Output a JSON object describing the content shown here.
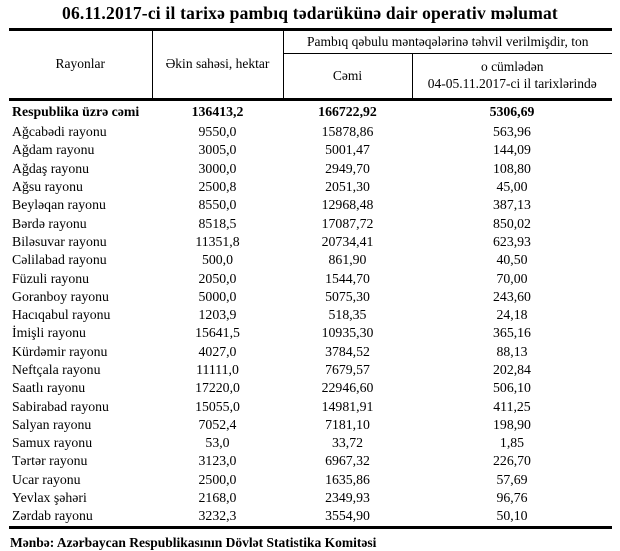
{
  "title": "06.11.2017-ci il tarixə pambıq tədarükünə dair operativ məlumat",
  "source": "Mənbə: Azərbaycan Respublikasının Dövlət Statistika Komitəsi",
  "table": {
    "headers": {
      "regions": "Rayonlar",
      "area": "Əkin sahəsi, hektar",
      "delivered_group": "Pambıq qəbulu məntəqələrinə təhvil verilmişdir, ton",
      "total": "Cəmi",
      "including_line1": "o cümlədən",
      "including_line2": "04-05.11.2017-ci il tarixlərində"
    },
    "summary_row": {
      "region": "Respublika üzrə cəmi",
      "area": "136413,2",
      "total": "166722,92",
      "recent": "5306,69"
    },
    "rows": [
      {
        "region": "Ağcabədi rayonu",
        "area": "9550,0",
        "total": "15878,86",
        "recent": "563,96"
      },
      {
        "region": "Ağdam rayonu",
        "area": "3005,0",
        "total": "5001,47",
        "recent": "144,09"
      },
      {
        "region": "Ağdaş rayonu",
        "area": "3000,0",
        "total": "2949,70",
        "recent": "108,80"
      },
      {
        "region": "Ağsu rayonu",
        "area": "2500,8",
        "total": "2051,30",
        "recent": "45,00"
      },
      {
        "region": "Beyləqan rayonu",
        "area": "8550,0",
        "total": "12968,48",
        "recent": "387,13"
      },
      {
        "region": "Bərdə rayonu",
        "area": "8518,5",
        "total": "17087,72",
        "recent": "850,02"
      },
      {
        "region": "Biləsuvar rayonu",
        "area": "11351,8",
        "total": "20734,41",
        "recent": "623,93"
      },
      {
        "region": "Cəlilabad rayonu",
        "area": "500,0",
        "total": "861,90",
        "recent": "40,50"
      },
      {
        "region": "Füzuli rayonu",
        "area": "2050,0",
        "total": "1544,70",
        "recent": "70,00"
      },
      {
        "region": "Goranboy rayonu",
        "area": "5000,0",
        "total": "5075,30",
        "recent": "243,60"
      },
      {
        "region": "Hacıqabul rayonu",
        "area": "1203,9",
        "total": "518,35",
        "recent": "24,18"
      },
      {
        "region": "İmişli rayonu",
        "area": "15641,5",
        "total": "10935,30",
        "recent": "365,16"
      },
      {
        "region": "Kürdəmir rayonu",
        "area": "4027,0",
        "total": "3784,52",
        "recent": "88,13"
      },
      {
        "region": "Neftçala rayonu",
        "area": "11111,0",
        "total": "7679,57",
        "recent": "202,84"
      },
      {
        "region": "Saatlı rayonu",
        "area": "17220,0",
        "total": "22946,60",
        "recent": "506,10"
      },
      {
        "region": "Sabirabad rayonu",
        "area": "15055,0",
        "total": "14981,91",
        "recent": "411,25"
      },
      {
        "region": "Salyan rayonu",
        "area": "7052,4",
        "total": "7181,10",
        "recent": "198,90"
      },
      {
        "region": "Samux rayonu",
        "area": "53,0",
        "total": "33,72",
        "recent": "1,85"
      },
      {
        "region": "Tərtər rayonu",
        "area": "3123,0",
        "total": "6967,32",
        "recent": "226,70"
      },
      {
        "region": "Ucar rayonu",
        "area": "2500,0",
        "total": "1635,86",
        "recent": "57,69"
      },
      {
        "region": "Yevlax şəhəri",
        "area": "2168,0",
        "total": "2349,93",
        "recent": "96,76"
      },
      {
        "region": "Zərdab rayonu",
        "area": "3232,3",
        "total": "3554,90",
        "recent": "50,10"
      }
    ]
  }
}
